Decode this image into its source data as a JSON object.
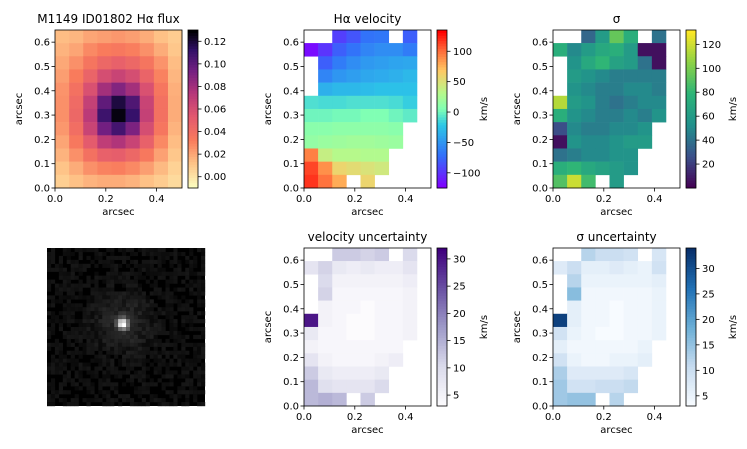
{
  "figure": {
    "tick_labels_x": [
      "0.0",
      "0.2",
      "0.4"
    ],
    "tick_labels_y": [
      "0.0",
      "0.1",
      "0.2",
      "0.3",
      "0.4",
      "0.5",
      "0.6"
    ],
    "ticks_x": [
      0.0,
      0.2,
      0.4
    ],
    "ticks_y": [
      0.0,
      0.1,
      0.2,
      0.3,
      0.4,
      0.5,
      0.6
    ]
  },
  "chart_data": [
    {
      "type": "heatmap",
      "title": "M1149 ID01802 Hα flux",
      "xlabel": "arcsec",
      "ylabel": "arcsec",
      "xlim": [
        0,
        0.5
      ],
      "ylim": [
        0,
        0.65
      ],
      "grid": false,
      "colormap": "magma_r",
      "colorbar": {
        "label": "",
        "range": [
          -0.01,
          0.13
        ],
        "ticks": [
          0.0,
          0.02,
          0.04,
          0.06,
          0.08,
          0.1,
          0.12
        ],
        "tick_labels": [
          "0.00",
          "0.02",
          "0.04",
          "0.06",
          "0.08",
          "0.10",
          "0.12"
        ]
      },
      "grid_cols": 9,
      "grid_rows": 12,
      "pixel_size_arcsec": [
        0.0556,
        0.0542
      ],
      "values_row_major_top_to_bottom": [
        [
          0.013,
          0.015,
          0.02,
          0.022,
          0.024,
          0.022,
          0.018,
          0.012,
          0.008
        ],
        [
          0.016,
          0.02,
          0.028,
          0.032,
          0.034,
          0.031,
          0.026,
          0.018,
          0.01
        ],
        [
          0.019,
          0.026,
          0.036,
          0.044,
          0.048,
          0.044,
          0.036,
          0.025,
          0.013
        ],
        [
          0.022,
          0.032,
          0.046,
          0.06,
          0.066,
          0.06,
          0.046,
          0.03,
          0.015
        ],
        [
          0.025,
          0.038,
          0.058,
          0.08,
          0.09,
          0.08,
          0.058,
          0.035,
          0.017
        ],
        [
          0.026,
          0.042,
          0.068,
          0.1,
          0.12,
          0.105,
          0.066,
          0.038,
          0.018
        ],
        [
          0.026,
          0.044,
          0.072,
          0.11,
          0.128,
          0.112,
          0.068,
          0.038,
          0.018
        ],
        [
          0.024,
          0.04,
          0.066,
          0.095,
          0.108,
          0.092,
          0.06,
          0.035,
          0.016
        ],
        [
          0.02,
          0.034,
          0.052,
          0.07,
          0.076,
          0.066,
          0.048,
          0.028,
          0.013
        ],
        [
          0.016,
          0.026,
          0.038,
          0.048,
          0.05,
          0.044,
          0.034,
          0.021,
          0.01
        ],
        [
          0.011,
          0.018,
          0.026,
          0.03,
          0.031,
          0.028,
          0.022,
          0.014,
          0.006
        ],
        [
          0.007,
          0.012,
          0.016,
          0.018,
          0.018,
          0.016,
          0.012,
          0.008,
          0.003
        ]
      ]
    },
    {
      "type": "heatmap",
      "title": "Hα velocity",
      "xlabel": "arcsec",
      "ylabel": "arcsec",
      "xlim": [
        0,
        0.5
      ],
      "ylim": [
        0,
        0.65
      ],
      "grid": false,
      "colormap": "rainbow",
      "colorbar": {
        "label": "km/s",
        "range": [
          -125,
          135
        ],
        "ticks": [
          -100,
          -50,
          0,
          50,
          100
        ],
        "tick_labels": [
          "−100",
          "−50",
          "0",
          "50",
          "100"
        ]
      },
      "grid_cols": 9,
      "grid_rows": 12,
      "pixel_size_arcsec": [
        0.0556,
        0.0542
      ],
      "values_row_major_top_to_bottom": [
        [
          null,
          null,
          -95,
          -85,
          -70,
          -68,
          null,
          -80,
          null
        ],
        [
          -120,
          -100,
          -80,
          -70,
          -60,
          -55,
          -55,
          -65,
          null
        ],
        [
          null,
          -80,
          -65,
          -55,
          -48,
          -45,
          -42,
          -40,
          null
        ],
        [
          null,
          -60,
          -50,
          -45,
          -40,
          -38,
          -35,
          -30,
          null
        ],
        [
          null,
          -35,
          -30,
          -30,
          -28,
          -25,
          -25,
          -25,
          null
        ],
        [
          -10,
          -12,
          -12,
          -10,
          -10,
          -10,
          -12,
          -18,
          null
        ],
        [
          0,
          0,
          2,
          2,
          5,
          5,
          0,
          -5,
          null
        ],
        [
          10,
          10,
          12,
          12,
          12,
          12,
          10,
          null,
          null
        ],
        [
          15,
          18,
          20,
          22,
          22,
          20,
          18,
          null,
          null
        ],
        [
          95,
          40,
          32,
          32,
          30,
          30,
          null,
          null,
          null
        ],
        [
          115,
          90,
          60,
          55,
          50,
          45,
          null,
          null,
          null
        ],
        [
          120,
          100,
          80,
          null,
          60,
          null,
          null,
          null,
          null
        ]
      ]
    },
    {
      "type": "heatmap",
      "title": "σ",
      "xlabel": "arcsec",
      "ylabel": "arcsec",
      "xlim": [
        0,
        0.5
      ],
      "ylim": [
        0,
        0.65
      ],
      "grid": false,
      "colormap": "viridis",
      "colorbar": {
        "label": "km/s",
        "range": [
          0,
          132
        ],
        "ticks": [
          20,
          40,
          60,
          80,
          100,
          120
        ],
        "tick_labels": [
          "20",
          "40",
          "60",
          "80",
          "100",
          "120"
        ]
      },
      "grid_cols": 9,
      "grid_rows": 12,
      "pixel_size_arcsec": [
        0.0556,
        0.0542
      ],
      "values_row_major_top_to_bottom": [
        [
          null,
          null,
          35,
          60,
          95,
          75,
          null,
          40,
          null
        ],
        [
          75,
          50,
          60,
          70,
          75,
          60,
          5,
          5,
          null
        ],
        [
          null,
          55,
          70,
          80,
          65,
          60,
          40,
          5,
          null
        ],
        [
          null,
          60,
          55,
          50,
          45,
          45,
          45,
          45,
          null
        ],
        [
          null,
          55,
          50,
          45,
          45,
          50,
          50,
          45,
          null
        ],
        [
          115,
          60,
          55,
          45,
          40,
          45,
          50,
          50,
          null
        ],
        [
          75,
          55,
          50,
          45,
          45,
          50,
          45,
          55,
          null
        ],
        [
          25,
          50,
          45,
          45,
          50,
          50,
          55,
          null,
          null
        ],
        [
          5,
          55,
          50,
          50,
          55,
          60,
          60,
          null,
          null
        ],
        [
          40,
          45,
          50,
          50,
          55,
          55,
          null,
          null,
          null
        ],
        [
          75,
          80,
          70,
          65,
          60,
          55,
          null,
          null,
          null
        ],
        [
          90,
          120,
          85,
          null,
          60,
          null,
          null,
          null,
          null
        ]
      ]
    },
    {
      "type": "image",
      "title": "",
      "description_hidden": false,
      "colormap": "gray",
      "grid_cols": 40,
      "grid_rows": 40,
      "source_peak": [
        0.48,
        0.48
      ]
    },
    {
      "type": "heatmap",
      "title": "velocity uncertainty",
      "xlabel": "arcsec",
      "ylabel": "arcsec",
      "xlim": [
        0,
        0.5
      ],
      "ylim": [
        0,
        0.65
      ],
      "grid": false,
      "colormap": "Purples",
      "colorbar": {
        "label": "km/s",
        "range": [
          3,
          32
        ],
        "ticks": [
          5,
          10,
          15,
          20,
          25,
          30
        ],
        "tick_labels": [
          "5",
          "10",
          "15",
          "20",
          "25",
          "30"
        ]
      },
      "grid_cols": 9,
      "grid_rows": 12,
      "pixel_size_arcsec": [
        0.0556,
        0.0542
      ],
      "values_row_major_top_to_bottom": [
        [
          null,
          null,
          12,
          12,
          11,
          12,
          null,
          10,
          null
        ],
        [
          8,
          11,
          7,
          6,
          7,
          6,
          6,
          8,
          null
        ],
        [
          null,
          10,
          5,
          5,
          5,
          5,
          5,
          6,
          null
        ],
        [
          null,
          11,
          4,
          4,
          4,
          4,
          4,
          5,
          null
        ],
        [
          null,
          5,
          4,
          4,
          3,
          4,
          4,
          5,
          null
        ],
        [
          30,
          5,
          4,
          3,
          3,
          4,
          4,
          5,
          null
        ],
        [
          7,
          4,
          4,
          3,
          3,
          4,
          4,
          5,
          null
        ],
        [
          5,
          4,
          4,
          4,
          4,
          4,
          4,
          null,
          null
        ],
        [
          8,
          5,
          4,
          4,
          4,
          5,
          6,
          null,
          null
        ],
        [
          12,
          7,
          6,
          6,
          6,
          7,
          null,
          null,
          null
        ],
        [
          14,
          9,
          8,
          8,
          8,
          10,
          null,
          null,
          null
        ],
        [
          14,
          15,
          14,
          null,
          12,
          null,
          null,
          null,
          null
        ]
      ]
    },
    {
      "type": "heatmap",
      "title": "σ uncertainty",
      "xlabel": "arcsec",
      "ylabel": "arcsec",
      "xlim": [
        0,
        0.5
      ],
      "ylim": [
        0,
        0.65
      ],
      "grid": false,
      "colormap": "Blues",
      "colorbar": {
        "label": "km/s",
        "range": [
          3,
          34
        ],
        "ticks": [
          5,
          10,
          15,
          20,
          25,
          30
        ],
        "tick_labels": [
          "5",
          "10",
          "15",
          "20",
          "25",
          "30"
        ]
      },
      "grid_cols": 9,
      "grid_rows": 12,
      "pixel_size_arcsec": [
        0.0556,
        0.0542
      ],
      "values_row_major_top_to_bottom": [
        [
          null,
          null,
          12,
          10,
          10,
          9,
          null,
          8,
          null
        ],
        [
          7,
          10,
          6,
          6,
          7,
          6,
          5,
          9,
          null
        ],
        [
          null,
          12,
          5,
          5,
          5,
          5,
          5,
          6,
          null
        ],
        [
          null,
          16,
          4,
          4,
          4,
          4,
          4,
          5,
          null
        ],
        [
          null,
          6,
          4,
          4,
          3,
          4,
          4,
          5,
          null
        ],
        [
          32,
          6,
          4,
          4,
          3,
          4,
          4,
          5,
          null
        ],
        [
          9,
          5,
          4,
          3,
          3,
          4,
          4,
          5,
          null
        ],
        [
          6,
          4,
          4,
          4,
          4,
          4,
          5,
          null,
          null
        ],
        [
          9,
          5,
          4,
          4,
          5,
          5,
          6,
          null,
          null
        ],
        [
          13,
          7,
          7,
          7,
          7,
          8,
          null,
          null,
          null
        ],
        [
          14,
          9,
          9,
          10,
          10,
          11,
          null,
          null,
          null
        ],
        [
          14,
          15,
          15,
          null,
          12,
          null,
          null,
          null,
          null
        ]
      ]
    }
  ]
}
